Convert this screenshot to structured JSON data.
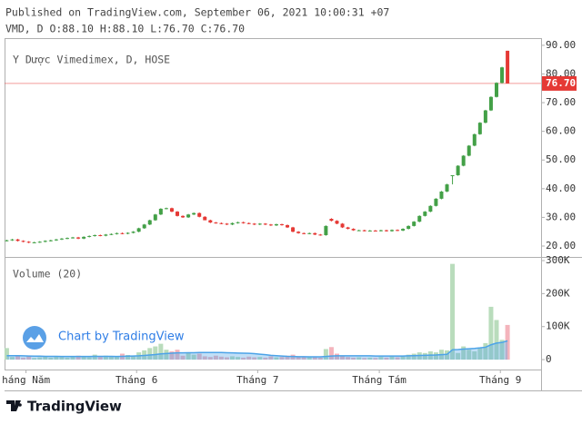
{
  "header": {
    "published": "Published on TradingView.com, September 06, 2021 10:00:31 +07",
    "ohlc": "VMD, D O:88.10 H:88.10 L:76.70 C:76.70"
  },
  "chart_data": {
    "type": "candlestick",
    "legend": "Y Dược Vimedimex, D, HOSE",
    "up_color": "#43a047",
    "down_color": "#e53935",
    "categories": [
      null,
      null,
      null,
      null,
      null,
      null,
      null,
      null,
      null,
      null,
      null,
      null,
      null,
      null,
      null,
      null,
      null,
      null,
      null,
      null,
      null,
      null,
      null,
      null,
      null,
      null,
      null,
      null,
      null,
      null,
      null,
      null,
      null,
      null,
      null,
      null,
      null,
      null,
      null,
      null,
      null,
      null,
      null,
      null,
      null,
      null,
      null,
      null,
      null,
      null,
      null,
      null,
      null,
      null,
      null,
      null,
      null,
      null,
      null,
      null,
      null,
      null,
      null,
      null,
      null,
      null,
      null,
      null,
      null,
      null,
      null,
      null,
      null,
      null,
      null,
      null,
      null,
      null,
      null,
      null,
      null,
      null,
      null,
      null,
      null,
      null,
      null,
      null,
      null,
      null,
      null,
      null
    ],
    "open": [
      21.8,
      22.0,
      22.3,
      21.8,
      21.5,
      21.2,
      21.3,
      21.5,
      21.8,
      22.0,
      22.3,
      22.6,
      22.8,
      23.0,
      22.6,
      23.2,
      23.5,
      23.8,
      23.6,
      24.0,
      24.2,
      24.5,
      24.3,
      24.6,
      25.0,
      26.2,
      27.5,
      29.0,
      31.0,
      33.0,
      33.2,
      32.0,
      30.5,
      30.0,
      31.0,
      31.5,
      30.2,
      29.0,
      28.2,
      28.0,
      27.8,
      27.5,
      28.0,
      28.3,
      28.0,
      27.8,
      27.5,
      27.8,
      27.5,
      27.2,
      27.6,
      27.3,
      26.5,
      25.0,
      24.5,
      24.3,
      24.5,
      24.0,
      23.8,
      29.5,
      28.8,
      27.8,
      26.5,
      26.0,
      25.5,
      25.5,
      25.3,
      25.4,
      25.3,
      25.5,
      25.2,
      25.6,
      25.4,
      26.0,
      27.0,
      28.5,
      30.5,
      32.0,
      34.0,
      36.5,
      39.0,
      44.7,
      44.7,
      48.0,
      51.5,
      55.0,
      59.0,
      63.0,
      67.3,
      72.0,
      76.9,
      88.1
    ],
    "high": [
      22.2,
      22.5,
      22.5,
      22.0,
      21.7,
      21.5,
      21.7,
      22.0,
      22.2,
      22.5,
      22.8,
      23.0,
      23.2,
      23.2,
      23.4,
      23.7,
      24.0,
      24.0,
      24.2,
      24.4,
      24.7,
      24.7,
      24.8,
      25.2,
      26.4,
      27.7,
      29.2,
      31.2,
      33.2,
      33.4,
      33.4,
      32.2,
      30.7,
      31.2,
      31.7,
      31.7,
      30.4,
      29.2,
      28.4,
      28.2,
      28.0,
      28.2,
      28.5,
      28.5,
      28.2,
      28.0,
      28.0,
      28.0,
      27.7,
      27.8,
      27.8,
      27.5,
      26.7,
      25.2,
      24.7,
      24.7,
      24.7,
      24.2,
      27.2,
      29.7,
      29.0,
      28.0,
      26.7,
      26.2,
      25.7,
      25.7,
      25.6,
      25.6,
      25.7,
      25.7,
      25.8,
      25.8,
      26.2,
      27.2,
      28.7,
      30.7,
      32.2,
      34.2,
      36.7,
      39.2,
      41.7,
      44.7,
      48.2,
      51.7,
      55.2,
      59.2,
      63.2,
      67.5,
      72.2,
      77.1,
      82.5,
      88.1
    ],
    "low": [
      21.6,
      21.8,
      21.6,
      21.3,
      21.0,
      21.0,
      21.1,
      21.3,
      21.6,
      21.8,
      22.1,
      22.4,
      22.6,
      22.4,
      22.4,
      23.0,
      23.3,
      23.4,
      23.4,
      23.8,
      24.0,
      24.1,
      24.1,
      24.4,
      24.8,
      26.0,
      27.3,
      28.8,
      30.8,
      32.8,
      31.8,
      30.3,
      29.8,
      29.8,
      30.8,
      30.0,
      29.0,
      28.0,
      27.8,
      27.6,
      27.3,
      27.3,
      27.8,
      27.8,
      27.6,
      27.3,
      27.3,
      27.3,
      27.0,
      27.0,
      27.1,
      26.3,
      24.8,
      24.3,
      24.1,
      24.1,
      23.8,
      23.6,
      23.6,
      28.6,
      27.6,
      26.3,
      25.8,
      25.3,
      25.3,
      25.1,
      25.1,
      25.1,
      25.1,
      25.0,
      25.0,
      25.2,
      25.2,
      25.8,
      26.8,
      28.3,
      30.3,
      31.8,
      33.8,
      36.3,
      38.8,
      41.5,
      44.5,
      47.8,
      51.3,
      54.8,
      58.8,
      62.8,
      67.1,
      71.8,
      76.7,
      76.7
    ],
    "close": [
      22.0,
      22.3,
      21.8,
      21.5,
      21.2,
      21.3,
      21.5,
      21.8,
      22.0,
      22.3,
      22.6,
      22.8,
      23.0,
      22.6,
      23.2,
      23.5,
      23.8,
      23.6,
      24.0,
      24.2,
      24.5,
      24.3,
      24.6,
      25.0,
      26.2,
      27.5,
      29.0,
      31.0,
      33.0,
      33.2,
      32.0,
      30.5,
      30.0,
      31.0,
      31.5,
      30.2,
      29.0,
      28.2,
      28.0,
      27.8,
      27.5,
      28.0,
      28.3,
      28.0,
      27.8,
      27.5,
      27.8,
      27.5,
      27.2,
      27.6,
      27.3,
      26.5,
      25.0,
      24.5,
      24.3,
      24.5,
      24.0,
      23.8,
      27.0,
      28.8,
      27.8,
      26.5,
      26.0,
      25.5,
      25.5,
      25.3,
      25.4,
      25.3,
      25.5,
      25.2,
      25.6,
      25.4,
      26.0,
      27.0,
      28.5,
      30.5,
      32.0,
      34.0,
      36.5,
      39.0,
      41.5,
      44.7,
      48.0,
      51.5,
      55.0,
      59.0,
      63.0,
      67.3,
      72.0,
      76.9,
      82.3,
      76.7
    ],
    "xlim": [
      -0.4,
      97.1
    ],
    "xticks": [
      {
        "value": 3.5,
        "label": "háng Năm"
      },
      {
        "value": 23.6,
        "label": "Tháng 6"
      },
      {
        "value": 45.6,
        "label": "Tháng 7"
      },
      {
        "value": 67.7,
        "label": "Tháng Tám"
      },
      {
        "value": 89.7,
        "label": "Tháng 9"
      }
    ],
    "ylim": [
      16.2,
      92.5
    ],
    "yticks": [
      {
        "value": 90,
        "label": "90.00"
      },
      {
        "value": 80,
        "label": "80.00"
      },
      {
        "value": 70,
        "label": "70.00"
      },
      {
        "value": 60,
        "label": "60.00"
      },
      {
        "value": 50,
        "label": "50.00"
      },
      {
        "value": 40,
        "label": "40.00"
      },
      {
        "value": 30,
        "label": "30.00"
      },
      {
        "value": 20,
        "label": "20.00"
      }
    ],
    "last_price": {
      "value": 76.7,
      "label": "76.70",
      "color": "#e53935"
    },
    "volume": {
      "legend": "Volume (20)",
      "up_color": "#b9dcbc",
      "down_color": "#f4b4bc",
      "ma_color": "#4ca3e8",
      "values": [
        35000,
        8000,
        12000,
        6000,
        10000,
        5000,
        7000,
        9000,
        6000,
        11000,
        8000,
        6000,
        9000,
        12000,
        10000,
        7000,
        15000,
        8000,
        12000,
        10000,
        9000,
        18000,
        14000,
        11000,
        22000,
        28000,
        35000,
        40000,
        48000,
        30000,
        25000,
        30000,
        12000,
        20000,
        15000,
        18000,
        10000,
        8000,
        12000,
        9000,
        7000,
        10000,
        8000,
        6000,
        9000,
        7000,
        8000,
        6000,
        10000,
        7000,
        8000,
        12000,
        15000,
        10000,
        8000,
        9000,
        7000,
        6000,
        32000,
        38000,
        18000,
        12000,
        8000,
        6000,
        7000,
        5000,
        6000,
        5000,
        8000,
        6000,
        9000,
        7000,
        12000,
        15000,
        18000,
        22000,
        20000,
        25000,
        22000,
        30000,
        28000,
        290000,
        20000,
        40000,
        30000,
        25000,
        35000,
        50000,
        160000,
        120000,
        60000,
        105000
      ],
      "ma": [
        12000,
        12000,
        12000,
        11500,
        11000,
        10500,
        10500,
        10000,
        10000,
        10000,
        9500,
        9500,
        9500,
        9500,
        9500,
        9500,
        10000,
        10000,
        10000,
        10000,
        9500,
        10000,
        10500,
        11000,
        11500,
        12500,
        14000,
        15500,
        17500,
        18500,
        19500,
        20500,
        20500,
        21000,
        21000,
        21500,
        21500,
        21500,
        21500,
        21500,
        21000,
        20500,
        20000,
        19500,
        19000,
        18000,
        16500,
        15000,
        13000,
        12000,
        11000,
        10000,
        9500,
        9000,
        9000,
        8500,
        8500,
        8500,
        9500,
        11000,
        11500,
        11500,
        11500,
        11500,
        11500,
        11500,
        11500,
        11000,
        11000,
        11000,
        11000,
        11000,
        11000,
        11500,
        12000,
        12500,
        13000,
        13500,
        14000,
        15000,
        16000,
        30000,
        30500,
        32000,
        33000,
        34000,
        35500,
        37500,
        45000,
        50000,
        52000,
        57000
      ],
      "ylim": [
        -30000,
        311000
      ],
      "yticks": [
        {
          "value": 300000,
          "label": "300K"
        },
        {
          "value": 200000,
          "label": "200K"
        },
        {
          "value": 100000,
          "label": "100K"
        },
        0
      ]
    }
  },
  "watermark": "Chart by TradingView",
  "footer": "TradingView"
}
